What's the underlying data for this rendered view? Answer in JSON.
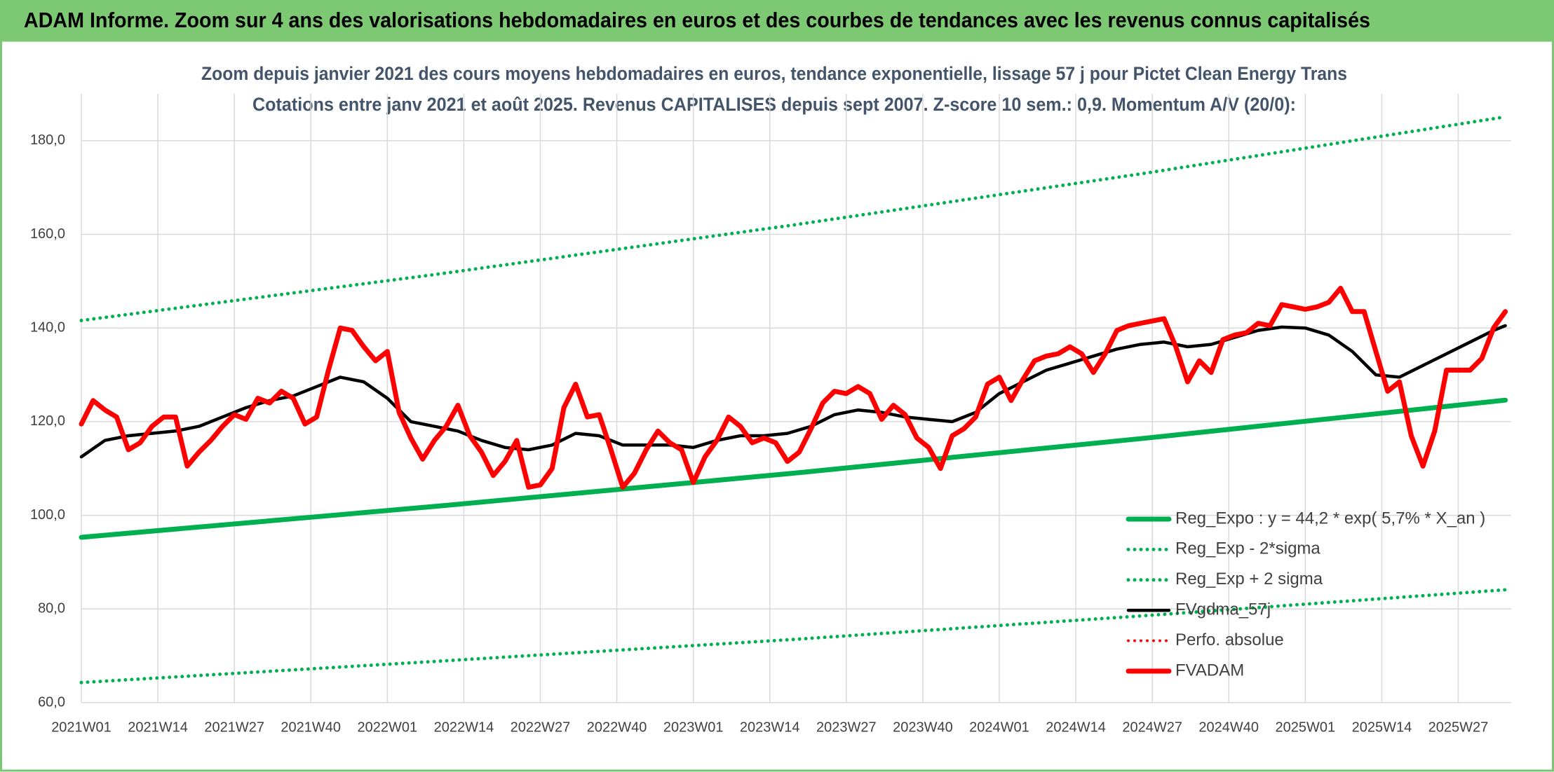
{
  "chart_data": {
    "type": "line",
    "title": "ADAM Informe. Zoom sur 4 ans des valorisations hebdomadaires en euros et des courbes de tendances avec les revenus connus capitalisés",
    "subtitle": [
      "Zoom depuis janvier 2021 des cours moyens hebdomadaires en euros, tendance exponentielle, lissage 57 j pour Pictet Clean Energy Trans",
      "Cotations entre janv 2021 et août 2025. Revenus CAPITALISES depuis sept 2007. Z-score 10 sem.: 0,9. Momentum A/V (20/0):"
    ],
    "xlim": [
      0,
      243
    ],
    "xticks": [
      {
        "value": 0,
        "label": "2021W01"
      },
      {
        "value": 13,
        "label": "2021W14"
      },
      {
        "value": 26,
        "label": "2021W27"
      },
      {
        "value": 39,
        "label": "2021W40"
      },
      {
        "value": 52,
        "label": "2022W01"
      },
      {
        "value": 65,
        "label": "2022W14"
      },
      {
        "value": 78,
        "label": "2022W27"
      },
      {
        "value": 91,
        "label": "2022W40"
      },
      {
        "value": 104,
        "label": "2023W01"
      },
      {
        "value": 117,
        "label": "2023W14"
      },
      {
        "value": 130,
        "label": "2023W27"
      },
      {
        "value": 143,
        "label": "2023W40"
      },
      {
        "value": 156,
        "label": "2024W01"
      },
      {
        "value": 169,
        "label": "2024W14"
      },
      {
        "value": 182,
        "label": "2024W27"
      },
      {
        "value": 195,
        "label": "2024W40"
      },
      {
        "value": 208,
        "label": "2025W01"
      },
      {
        "value": 221,
        "label": "2025W14"
      },
      {
        "value": 234,
        "label": "2025W27"
      }
    ],
    "ylim": [
      60,
      190
    ],
    "yticks": [
      {
        "value": 60,
        "label": "60,0"
      },
      {
        "value": 80,
        "label": "80,0"
      },
      {
        "value": 100,
        "label": "100,0"
      },
      {
        "value": 120,
        "label": "120,0"
      },
      {
        "value": 140,
        "label": "140,0"
      },
      {
        "value": 160,
        "label": "160,0"
      },
      {
        "value": 180,
        "label": "180,0"
      }
    ],
    "grid": true,
    "series": [
      {
        "name": "Reg_Expo : y = 44,2 * exp( 5,7% *  X_an )",
        "color": "#00b050",
        "dash": "solid",
        "x": [
          0,
          60,
          121,
          181,
          242
        ],
        "values": [
          95.3,
          101.9,
          109.0,
          116.5,
          124.6
        ]
      },
      {
        "name": "Reg_Exp - 2*sigma",
        "color": "#00b050",
        "dash": "dotted",
        "x": [
          0,
          60,
          121,
          181,
          242
        ],
        "values": [
          64.3,
          68.8,
          73.5,
          78.6,
          84.1
        ]
      },
      {
        "name": "Reg_Exp + 2 sigma",
        "color": "#00b050",
        "dash": "dotted",
        "x": [
          0,
          60,
          121,
          181,
          242
        ],
        "values": [
          141.6,
          151.4,
          162.0,
          173.1,
          185.1
        ]
      },
      {
        "name": "FVgdma_57j",
        "color": "#000000",
        "dash": "solid",
        "x": [
          0,
          4,
          8,
          12,
          16,
          20,
          24,
          28,
          32,
          36,
          40,
          44,
          48,
          52,
          56,
          60,
          64,
          68,
          72,
          76,
          80,
          84,
          88,
          92,
          96,
          100,
          104,
          108,
          112,
          116,
          120,
          124,
          128,
          132,
          136,
          140,
          144,
          148,
          152,
          156,
          160,
          164,
          168,
          172,
          176,
          180,
          184,
          188,
          192,
          196,
          200,
          204,
          208,
          212,
          216,
          220,
          224,
          228,
          232,
          236,
          240,
          242
        ],
        "values": [
          112.5,
          116,
          117,
          117.5,
          118,
          119,
          121,
          123,
          124.5,
          125.5,
          127.5,
          129.5,
          128.5,
          125,
          120,
          119,
          118,
          116,
          114.5,
          114,
          115,
          117.5,
          117,
          115,
          115,
          115,
          114.5,
          116,
          117,
          117,
          117.5,
          119,
          121.5,
          122.5,
          122,
          121,
          120.5,
          120,
          122,
          126,
          128.5,
          131,
          132.5,
          134,
          135.5,
          136.5,
          137,
          136,
          136.5,
          138,
          139.5,
          140.2,
          140,
          138.5,
          135,
          130,
          129.5,
          132,
          134.5,
          137,
          139.5,
          140.5
        ]
      },
      {
        "name": "Perfo. absolue",
        "color": "#ff0000",
        "dash": "dotted",
        "x": [],
        "values": []
      },
      {
        "name": "FVADAM",
        "color": "#ff0000",
        "dash": "solid",
        "x": [
          0,
          2,
          4,
          6,
          8,
          10,
          12,
          14,
          16,
          18,
          20,
          22,
          24,
          26,
          28,
          30,
          32,
          34,
          36,
          38,
          40,
          42,
          44,
          46,
          48,
          50,
          52,
          54,
          56,
          58,
          60,
          62,
          64,
          66,
          68,
          70,
          72,
          74,
          76,
          78,
          80,
          82,
          84,
          86,
          88,
          90,
          92,
          94,
          96,
          98,
          100,
          102,
          104,
          106,
          108,
          110,
          112,
          114,
          116,
          118,
          120,
          122,
          124,
          126,
          128,
          130,
          132,
          134,
          136,
          138,
          140,
          142,
          144,
          146,
          148,
          150,
          152,
          154,
          156,
          158,
          160,
          162,
          164,
          166,
          168,
          170,
          172,
          174,
          176,
          178,
          180,
          182,
          184,
          186,
          188,
          190,
          192,
          194,
          196,
          198,
          200,
          202,
          204,
          206,
          208,
          210,
          212,
          214,
          216,
          218,
          220,
          222,
          224,
          226,
          228,
          230,
          232,
          234,
          236,
          238,
          240,
          242
        ],
        "values": [
          119.5,
          124.5,
          122.5,
          121,
          114,
          115.5,
          119,
          121,
          121,
          110.5,
          113.5,
          116,
          119,
          121.5,
          120.5,
          125,
          124,
          126.5,
          125,
          119.5,
          121,
          131,
          140,
          139.5,
          136,
          133,
          135,
          122,
          116.5,
          112,
          116,
          119,
          123.5,
          117,
          113.5,
          108.5,
          111.5,
          116,
          106,
          106.5,
          110,
          123,
          128,
          121,
          121.5,
          114,
          106,
          109,
          114,
          118,
          115.5,
          114,
          107,
          112.5,
          116,
          121,
          119,
          115.5,
          116.5,
          115.5,
          111.5,
          113.5,
          118.5,
          124,
          126.5,
          126,
          127.5,
          126,
          120.5,
          123.5,
          121.5,
          116.5,
          114.5,
          110,
          117,
          118.5,
          121,
          128,
          129.5,
          124.5,
          129,
          133,
          134,
          134.5,
          136,
          134.5,
          130.5,
          134.5,
          139.5,
          140.5,
          141,
          141.5,
          142,
          136,
          128.5,
          133,
          130.5,
          137.5,
          138.5,
          139,
          141,
          140.5,
          145,
          144.5,
          144,
          144.5,
          145.5,
          148.5,
          143.5,
          143.5,
          135,
          126.5,
          128.5,
          117,
          110.5,
          118,
          131,
          131,
          131,
          133.5,
          140,
          143.5
        ]
      }
    ]
  }
}
